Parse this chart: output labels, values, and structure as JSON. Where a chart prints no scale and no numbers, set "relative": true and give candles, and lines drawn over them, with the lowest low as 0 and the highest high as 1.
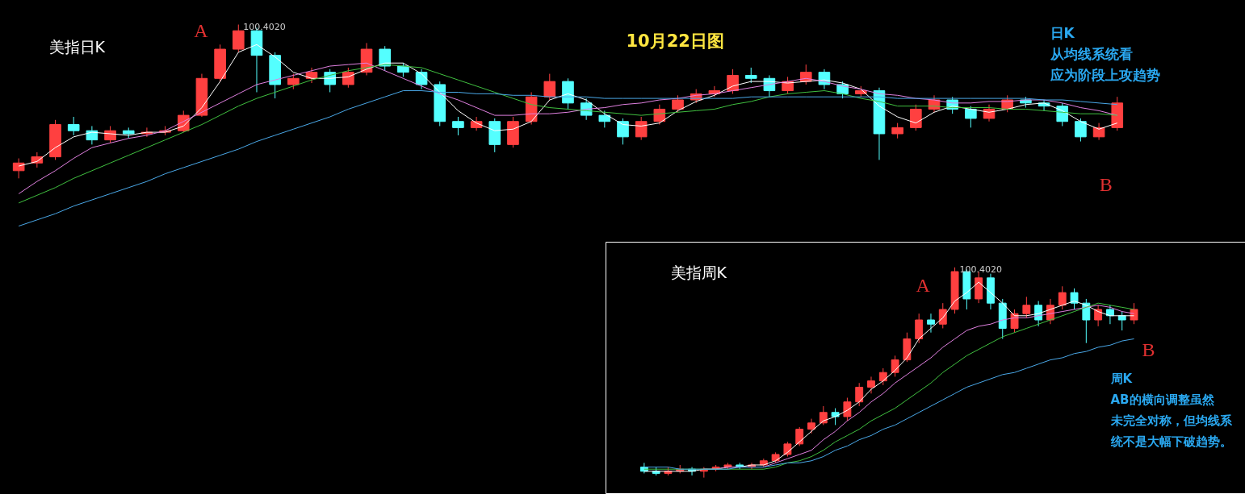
{
  "chart_data": [
    {
      "type": "candlestick",
      "relative": true,
      "title": "美指日K",
      "annotations": [
        "10月22日图",
        "日K",
        "从均线系统看",
        "应为阶段上攻趋势",
        "A",
        "B",
        "100.4020"
      ],
      "categories": [
        null,
        null,
        null,
        null,
        null,
        null,
        null,
        null,
        null,
        null,
        null,
        null,
        null,
        null,
        null,
        null,
        null,
        null,
        null,
        null,
        null,
        null,
        null,
        null,
        null,
        null,
        null,
        null,
        null,
        null,
        null,
        null,
        null,
        null,
        null,
        null,
        null,
        null,
        null,
        null,
        null,
        null,
        null,
        null,
        null,
        null,
        null,
        null,
        null,
        null,
        null,
        null,
        null,
        null,
        null,
        null,
        null,
        null,
        null,
        null,
        null
      ],
      "ohlc": [
        [
          0.05,
          0.13,
          0.0,
          0.1
        ],
        [
          0.1,
          0.17,
          0.07,
          0.14
        ],
        [
          0.14,
          0.38,
          0.12,
          0.35
        ],
        [
          0.35,
          0.4,
          0.28,
          0.31
        ],
        [
          0.31,
          0.34,
          0.22,
          0.25
        ],
        [
          0.25,
          0.34,
          0.23,
          0.31
        ],
        [
          0.31,
          0.33,
          0.26,
          0.29
        ],
        [
          0.29,
          0.33,
          0.27,
          0.3
        ],
        [
          0.3,
          0.34,
          0.28,
          0.31
        ],
        [
          0.31,
          0.44,
          0.3,
          0.41
        ],
        [
          0.41,
          0.68,
          0.4,
          0.65
        ],
        [
          0.65,
          0.87,
          0.63,
          0.84
        ],
        [
          0.84,
          1.0,
          0.82,
          0.96
        ],
        [
          0.96,
          0.98,
          0.56,
          0.8
        ],
        [
          0.8,
          0.82,
          0.52,
          0.61
        ],
        [
          0.61,
          0.68,
          0.58,
          0.65
        ],
        [
          0.65,
          0.72,
          0.62,
          0.69
        ],
        [
          0.69,
          0.71,
          0.56,
          0.61
        ],
        [
          0.61,
          0.72,
          0.59,
          0.69
        ],
        [
          0.69,
          0.88,
          0.67,
          0.84
        ],
        [
          0.84,
          0.86,
          0.7,
          0.73
        ],
        [
          0.73,
          0.75,
          0.66,
          0.69
        ],
        [
          0.69,
          0.71,
          0.58,
          0.61
        ],
        [
          0.61,
          0.63,
          0.34,
          0.37
        ],
        [
          0.37,
          0.4,
          0.28,
          0.33
        ],
        [
          0.33,
          0.4,
          0.31,
          0.37
        ],
        [
          0.37,
          0.39,
          0.17,
          0.22
        ],
        [
          0.22,
          0.4,
          0.2,
          0.37
        ],
        [
          0.37,
          0.56,
          0.35,
          0.53
        ],
        [
          0.53,
          0.68,
          0.51,
          0.63
        ],
        [
          0.63,
          0.65,
          0.45,
          0.49
        ],
        [
          0.49,
          0.52,
          0.38,
          0.41
        ],
        [
          0.41,
          0.44,
          0.33,
          0.37
        ],
        [
          0.37,
          0.39,
          0.22,
          0.27
        ],
        [
          0.27,
          0.4,
          0.25,
          0.37
        ],
        [
          0.37,
          0.48,
          0.35,
          0.45
        ],
        [
          0.45,
          0.54,
          0.43,
          0.51
        ],
        [
          0.51,
          0.58,
          0.49,
          0.55
        ],
        [
          0.55,
          0.6,
          0.53,
          0.57
        ],
        [
          0.57,
          0.71,
          0.55,
          0.67
        ],
        [
          0.67,
          0.72,
          0.62,
          0.65
        ],
        [
          0.65,
          0.67,
          0.53,
          0.57
        ],
        [
          0.57,
          0.66,
          0.55,
          0.63
        ],
        [
          0.63,
          0.74,
          0.61,
          0.69
        ],
        [
          0.69,
          0.71,
          0.58,
          0.61
        ],
        [
          0.61,
          0.63,
          0.52,
          0.55
        ],
        [
          0.55,
          0.6,
          0.53,
          0.57
        ],
        [
          0.57,
          0.59,
          0.12,
          0.29
        ],
        [
          0.29,
          0.36,
          0.26,
          0.33
        ],
        [
          0.33,
          0.48,
          0.31,
          0.45
        ],
        [
          0.45,
          0.54,
          0.43,
          0.51
        ],
        [
          0.51,
          0.53,
          0.42,
          0.45
        ],
        [
          0.45,
          0.47,
          0.33,
          0.39
        ],
        [
          0.39,
          0.48,
          0.37,
          0.45
        ],
        [
          0.45,
          0.54,
          0.43,
          0.51
        ],
        [
          0.51,
          0.53,
          0.46,
          0.49
        ],
        [
          0.49,
          0.51,
          0.44,
          0.47
        ],
        [
          0.47,
          0.49,
          0.34,
          0.37
        ],
        [
          0.37,
          0.39,
          0.24,
          0.27
        ],
        [
          0.27,
          0.36,
          0.25,
          0.33
        ],
        [
          0.33,
          0.53,
          0.31,
          0.49
        ]
      ],
      "colors": [
        "#ff4040",
        "#ff4040",
        "#ff4040",
        "#54ffff",
        "#54ffff",
        "#ff4040",
        "#54ffff",
        "#ff4040",
        "#ff4040",
        "#ff4040",
        "#ff4040",
        "#ff4040",
        "#ff4040",
        "#54ffff",
        "#54ffff",
        "#ff4040",
        "#ff4040",
        "#54ffff",
        "#ff4040",
        "#ff4040",
        "#54ffff",
        "#54ffff",
        "#54ffff",
        "#54ffff",
        "#54ffff",
        "#ff4040",
        "#54ffff",
        "#ff4040",
        "#ff4040",
        "#ff4040",
        "#54ffff",
        "#54ffff",
        "#54ffff",
        "#54ffff",
        "#ff4040",
        "#ff4040",
        "#ff4040",
        "#ff4040",
        "#ff4040",
        "#ff4040",
        "#54ffff",
        "#54ffff",
        "#ff4040",
        "#ff4040",
        "#54ffff",
        "#54ffff",
        "#ff4040",
        "#54ffff",
        "#ff4040",
        "#ff4040",
        "#ff4040",
        "#54ffff",
        "#54ffff",
        "#ff4040",
        "#ff4040",
        "#54ffff",
        "#54ffff",
        "#54ffff",
        "#54ffff",
        "#ff4040",
        "#ff4040"
      ],
      "series": [
        {
          "type": "line",
          "color": "#ffffff",
          "values": [
            0.08,
            0.11,
            0.2,
            0.27,
            0.3,
            0.29,
            0.28,
            0.3,
            0.3,
            0.34,
            0.46,
            0.63,
            0.82,
            0.87,
            0.79,
            0.69,
            0.65,
            0.65,
            0.66,
            0.71,
            0.75,
            0.75,
            0.68,
            0.56,
            0.44,
            0.36,
            0.31,
            0.32,
            0.37,
            0.51,
            0.55,
            0.51,
            0.42,
            0.35,
            0.34,
            0.36,
            0.44,
            0.5,
            0.54,
            0.6,
            0.63,
            0.63,
            0.62,
            0.63,
            0.64,
            0.62,
            0.58,
            0.47,
            0.4,
            0.36,
            0.43,
            0.47,
            0.45,
            0.43,
            0.45,
            0.48,
            0.49,
            0.44,
            0.37,
            0.32,
            0.36
          ]
        },
        {
          "type": "line",
          "color": "#e080e0",
          "values": [
            -0.1,
            -0.02,
            0.05,
            0.13,
            0.2,
            0.23,
            0.26,
            0.28,
            0.31,
            0.37,
            0.43,
            0.49,
            0.55,
            0.61,
            0.64,
            0.67,
            0.7,
            0.73,
            0.74,
            0.75,
            0.7,
            0.65,
            0.6,
            0.55,
            0.51,
            0.46,
            0.41,
            0.41,
            0.42,
            0.42,
            0.43,
            0.45,
            0.46,
            0.48,
            0.49,
            0.51,
            0.52,
            0.54,
            0.55,
            0.57,
            0.59,
            0.61,
            0.63,
            0.65,
            0.63,
            0.6,
            0.58,
            0.55,
            0.54,
            0.52,
            0.51,
            0.49,
            0.49,
            0.5,
            0.5,
            0.51,
            0.51,
            0.49,
            0.46,
            0.44,
            0.41
          ]
        },
        {
          "type": "line",
          "color": "#40c040",
          "values": [
            -0.16,
            -0.11,
            -0.06,
            0.0,
            0.05,
            0.1,
            0.15,
            0.2,
            0.25,
            0.3,
            0.35,
            0.41,
            0.47,
            0.52,
            0.56,
            0.6,
            0.64,
            0.67,
            0.7,
            0.72,
            0.74,
            0.73,
            0.72,
            0.68,
            0.64,
            0.6,
            0.56,
            0.52,
            0.48,
            0.46,
            0.45,
            0.44,
            0.43,
            0.42,
            0.41,
            0.42,
            0.43,
            0.44,
            0.45,
            0.48,
            0.5,
            0.53,
            0.55,
            0.56,
            0.57,
            0.55,
            0.52,
            0.5,
            0.47,
            0.47,
            0.47,
            0.46,
            0.46,
            0.46,
            0.45,
            0.45,
            0.44,
            0.43,
            0.42,
            0.42,
            0.41
          ]
        },
        {
          "type": "line",
          "color": "#4aa8e8",
          "values": [
            -0.31,
            -0.27,
            -0.23,
            -0.18,
            -0.14,
            -0.1,
            -0.06,
            -0.02,
            0.03,
            0.07,
            0.11,
            0.15,
            0.19,
            0.24,
            0.28,
            0.32,
            0.36,
            0.4,
            0.45,
            0.49,
            0.53,
            0.57,
            0.57,
            0.56,
            0.56,
            0.55,
            0.55,
            0.54,
            0.54,
            0.53,
            0.53,
            0.53,
            0.52,
            0.52,
            0.52,
            0.52,
            0.52,
            0.52,
            0.52,
            0.52,
            0.53,
            0.53,
            0.53,
            0.53,
            0.53,
            0.53,
            0.53,
            0.53,
            0.52,
            0.52,
            0.52,
            0.52,
            0.52,
            0.52,
            0.52,
            0.52,
            0.51,
            0.51,
            0.5,
            0.49,
            0.48
          ]
        }
      ]
    },
    {
      "type": "candlestick",
      "relative": true,
      "title": "美指周K",
      "annotations": [
        "A",
        "B",
        "周K",
        "AB的横向调整虽然",
        "未完全对称，但均线系",
        "统不是大幅下破趋势。",
        "100.4020"
      ],
      "categories": [
        null,
        null,
        null,
        null,
        null,
        null,
        null,
        null,
        null,
        null,
        null,
        null,
        null,
        null,
        null,
        null,
        null,
        null,
        null,
        null,
        null,
        null,
        null,
        null,
        null,
        null,
        null,
        null,
        null,
        null,
        null,
        null,
        null,
        null,
        null,
        null,
        null,
        null,
        null,
        null,
        null,
        null
      ],
      "ohlc": [
        [
          0.05,
          0.07,
          0.02,
          0.03
        ],
        [
          0.03,
          0.05,
          0.01,
          0.02
        ],
        [
          0.02,
          0.05,
          0.01,
          0.03
        ],
        [
          0.03,
          0.06,
          0.02,
          0.04
        ],
        [
          0.04,
          0.05,
          0.01,
          0.03
        ],
        [
          0.03,
          0.05,
          0.0,
          0.04
        ],
        [
          0.04,
          0.06,
          0.03,
          0.05
        ],
        [
          0.05,
          0.07,
          0.04,
          0.06
        ],
        [
          0.06,
          0.07,
          0.04,
          0.05
        ],
        [
          0.05,
          0.07,
          0.04,
          0.06
        ],
        [
          0.06,
          0.09,
          0.05,
          0.08
        ],
        [
          0.08,
          0.12,
          0.07,
          0.11
        ],
        [
          0.11,
          0.17,
          0.1,
          0.16
        ],
        [
          0.16,
          0.24,
          0.15,
          0.23
        ],
        [
          0.23,
          0.28,
          0.21,
          0.26
        ],
        [
          0.26,
          0.34,
          0.25,
          0.31
        ],
        [
          0.31,
          0.33,
          0.25,
          0.29
        ],
        [
          0.29,
          0.38,
          0.27,
          0.36
        ],
        [
          0.36,
          0.45,
          0.34,
          0.43
        ],
        [
          0.43,
          0.48,
          0.4,
          0.46
        ],
        [
          0.46,
          0.52,
          0.44,
          0.5
        ],
        [
          0.5,
          0.58,
          0.48,
          0.56
        ],
        [
          0.56,
          0.69,
          0.55,
          0.66
        ],
        [
          0.66,
          0.78,
          0.64,
          0.75
        ],
        [
          0.75,
          0.78,
          0.69,
          0.73
        ],
        [
          0.73,
          0.83,
          0.71,
          0.8
        ],
        [
          0.8,
          1.0,
          0.78,
          0.98
        ],
        [
          0.98,
          0.99,
          0.8,
          0.85
        ],
        [
          0.85,
          0.98,
          0.83,
          0.95
        ],
        [
          0.95,
          0.97,
          0.8,
          0.83
        ],
        [
          0.83,
          0.85,
          0.66,
          0.71
        ],
        [
          0.71,
          0.8,
          0.69,
          0.78
        ],
        [
          0.78,
          0.86,
          0.76,
          0.82
        ],
        [
          0.82,
          0.84,
          0.72,
          0.75
        ],
        [
          0.75,
          0.85,
          0.73,
          0.82
        ],
        [
          0.82,
          0.91,
          0.8,
          0.88
        ],
        [
          0.88,
          0.9,
          0.8,
          0.83
        ],
        [
          0.83,
          0.85,
          0.64,
          0.75
        ],
        [
          0.75,
          0.82,
          0.72,
          0.8
        ],
        [
          0.8,
          0.82,
          0.73,
          0.77
        ],
        [
          0.77,
          0.79,
          0.7,
          0.75
        ],
        [
          0.75,
          0.83,
          0.73,
          0.8
        ]
      ],
      "colors": [
        "#54ffff",
        "#54ffff",
        "#ff4040",
        "#ff4040",
        "#54ffff",
        "#ff4040",
        "#ff4040",
        "#ff4040",
        "#54ffff",
        "#ff4040",
        "#ff4040",
        "#ff4040",
        "#ff4040",
        "#ff4040",
        "#ff4040",
        "#ff4040",
        "#54ffff",
        "#ff4040",
        "#ff4040",
        "#ff4040",
        "#ff4040",
        "#ff4040",
        "#ff4040",
        "#ff4040",
        "#54ffff",
        "#ff4040",
        "#ff4040",
        "#54ffff",
        "#ff4040",
        "#54ffff",
        "#54ffff",
        "#ff4040",
        "#ff4040",
        "#54ffff",
        "#ff4040",
        "#ff4040",
        "#54ffff",
        "#54ffff",
        "#ff4040",
        "#54ffff",
        "#54ffff",
        "#ff4040"
      ],
      "series": [
        {
          "type": "line",
          "color": "#ffffff",
          "values": [
            0.03,
            0.03,
            0.03,
            0.03,
            0.03,
            0.04,
            0.04,
            0.05,
            0.05,
            0.06,
            0.06,
            0.08,
            0.12,
            0.17,
            0.22,
            0.27,
            0.29,
            0.32,
            0.36,
            0.42,
            0.46,
            0.51,
            0.57,
            0.66,
            0.71,
            0.76,
            0.84,
            0.88,
            0.93,
            0.88,
            0.83,
            0.77,
            0.77,
            0.78,
            0.8,
            0.82,
            0.84,
            0.82,
            0.79,
            0.77,
            0.77,
            0.77
          ]
        },
        {
          "type": "line",
          "color": "#e080e0",
          "values": [
            null,
            null,
            null,
            null,
            null,
            0.04,
            0.04,
            0.05,
            0.05,
            0.05,
            0.05,
            0.07,
            0.09,
            0.11,
            0.13,
            0.18,
            0.22,
            0.27,
            0.31,
            0.36,
            0.4,
            0.45,
            0.49,
            0.53,
            0.57,
            0.62,
            0.66,
            0.7,
            0.72,
            0.73,
            0.75,
            0.76,
            0.76,
            0.77,
            0.78,
            0.79,
            0.8,
            0.81,
            0.82,
            0.81,
            0.79,
            0.78
          ]
        },
        {
          "type": "line",
          "color": "#40c040",
          "values": [
            0.04,
            0.04,
            0.04,
            0.04,
            0.04,
            0.04,
            0.04,
            0.04,
            0.04,
            0.04,
            0.04,
            0.05,
            0.07,
            0.08,
            0.1,
            0.13,
            0.17,
            0.2,
            0.23,
            0.27,
            0.3,
            0.33,
            0.37,
            0.41,
            0.45,
            0.5,
            0.54,
            0.58,
            0.61,
            0.64,
            0.67,
            0.69,
            0.71,
            0.73,
            0.75,
            0.77,
            0.79,
            0.81,
            0.83,
            0.82,
            0.81,
            0.8
          ]
        },
        {
          "type": "line",
          "color": "#4aa8e8",
          "values": [
            0.05,
            0.05,
            0.05,
            0.04,
            0.04,
            0.04,
            0.04,
            0.04,
            0.05,
            0.05,
            0.05,
            0.06,
            0.07,
            0.07,
            0.08,
            0.1,
            0.13,
            0.15,
            0.18,
            0.2,
            0.23,
            0.25,
            0.28,
            0.31,
            0.34,
            0.37,
            0.4,
            0.43,
            0.45,
            0.47,
            0.49,
            0.5,
            0.52,
            0.54,
            0.56,
            0.57,
            0.59,
            0.6,
            0.62,
            0.63,
            0.65,
            0.66
          ]
        }
      ]
    }
  ]
}
